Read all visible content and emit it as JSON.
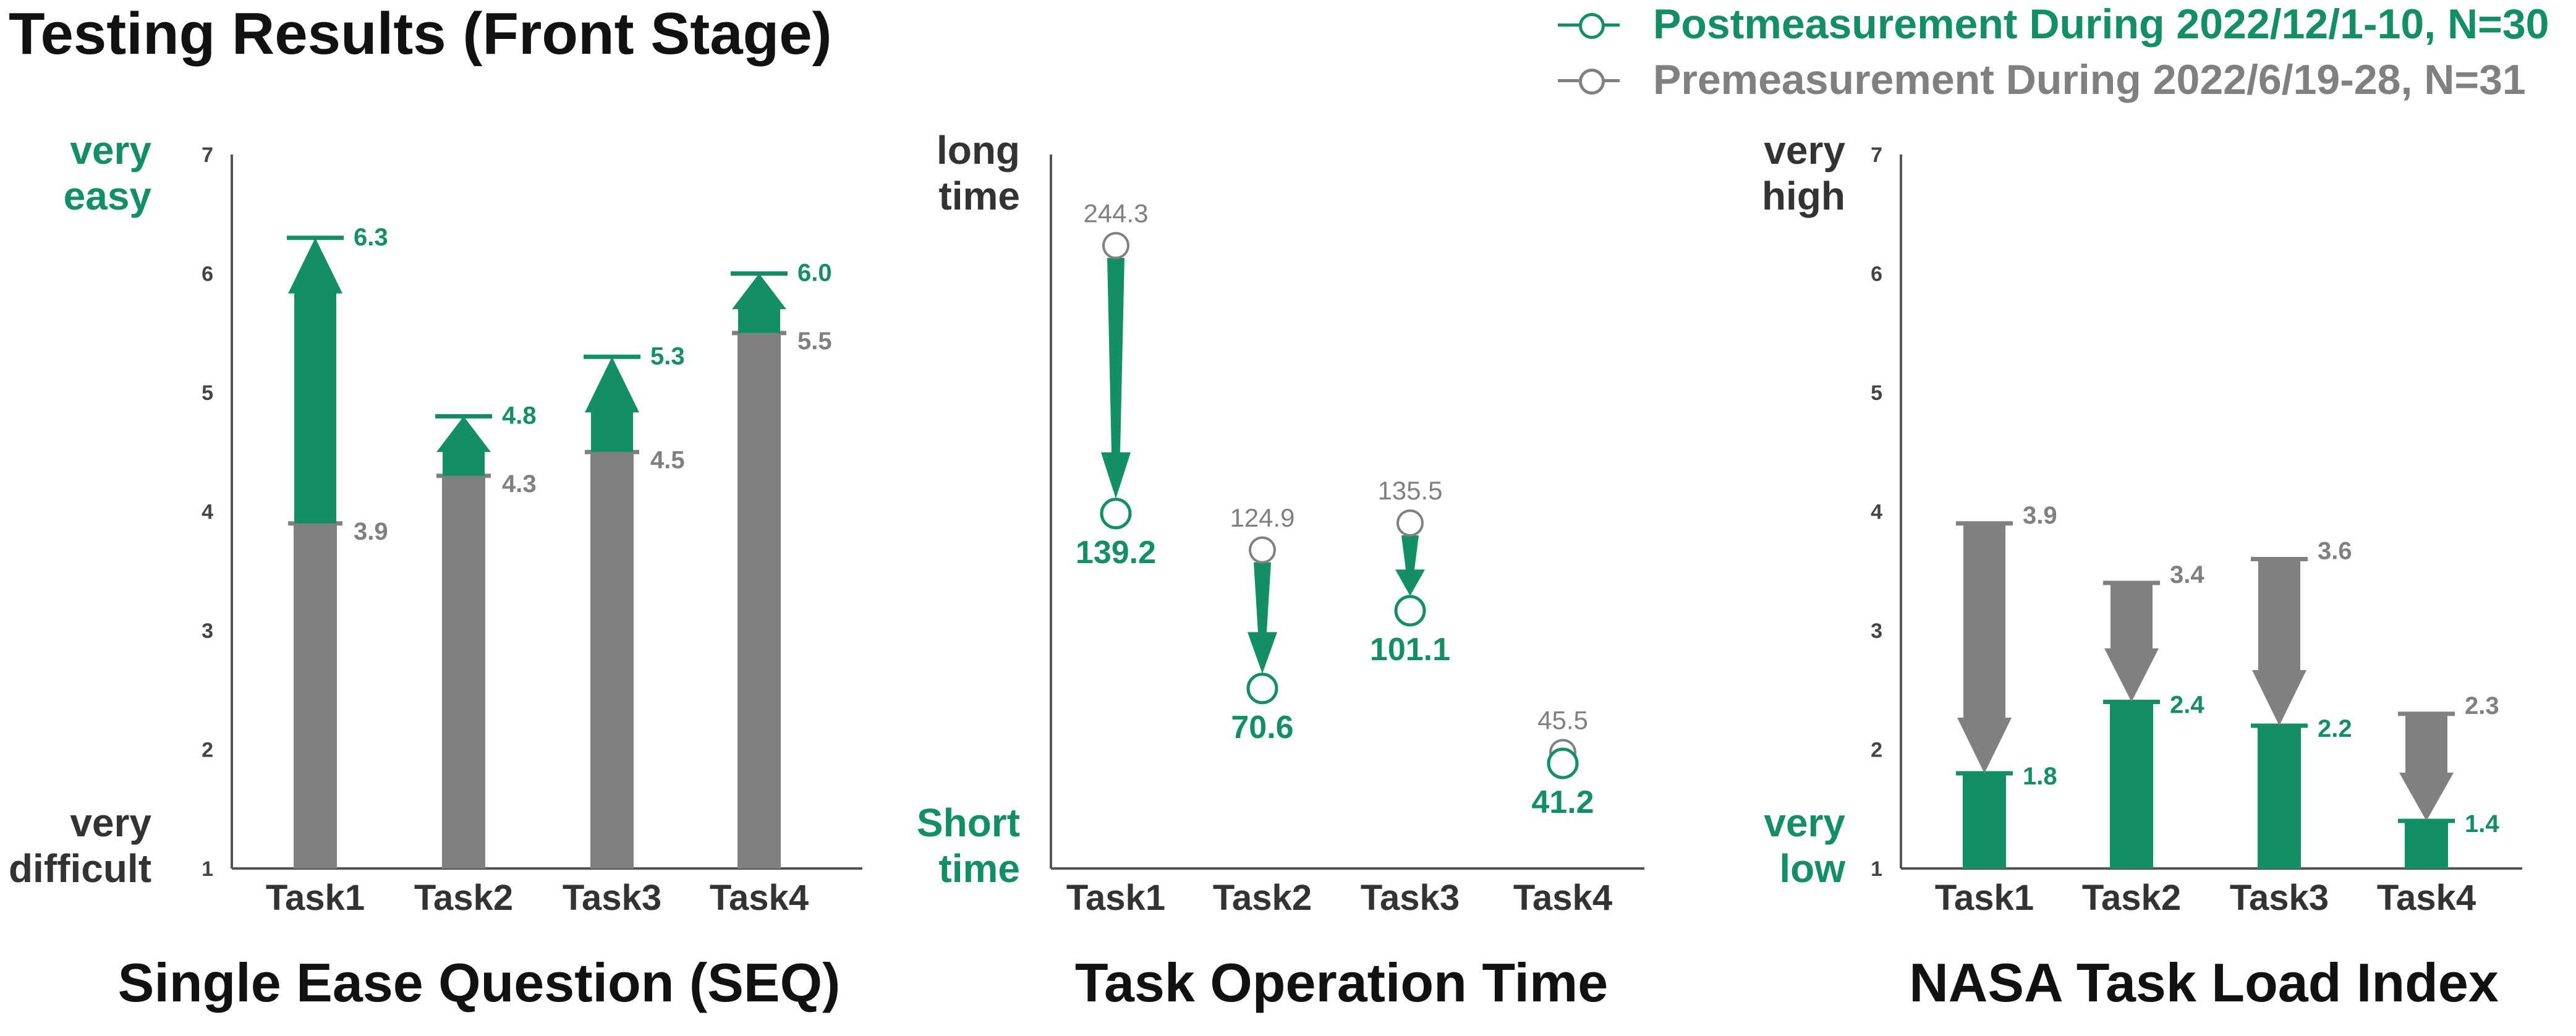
{
  "page_title": "Testing Results (Front Stage)",
  "colors": {
    "post": "#138f63",
    "pre": "#808080",
    "axis": "#555555",
    "text": "#333333"
  },
  "legend": {
    "post": {
      "label": "Postmeasurement During 2022/12/1-10, N=30",
      "color": "#138f63",
      "marker": "open-circle-icon"
    },
    "pre": {
      "label": "Premeasurement During 2022/6/19-28, N=31",
      "color": "#808080",
      "marker": "open-circle-icon"
    }
  },
  "chart_data": [
    {
      "type": "bar",
      "title": "Single Ease Question (SEQ)",
      "categories": [
        "Task1",
        "Task2",
        "Task3",
        "Task4"
      ],
      "ylim": [
        1,
        7
      ],
      "yticks": [
        "1",
        "2",
        "3",
        "4",
        "5",
        "6",
        "7"
      ],
      "top_label": [
        "very",
        "easy"
      ],
      "bottom_label": [
        "very",
        "difficult"
      ],
      "series": [
        {
          "name": "Premeasurement During 2022/6/19-28, N=31",
          "values": [
            3.9,
            4.3,
            4.5,
            5.5
          ],
          "labels": [
            "3.9",
            "4.3",
            "4.5",
            "5.5"
          ]
        },
        {
          "name": "Postmeasurement During 2022/12/1-10, N=30",
          "values": [
            6.3,
            4.8,
            5.3,
            6.0
          ],
          "labels": [
            "6.3",
            "4.8",
            "5.3",
            "6.0"
          ]
        }
      ]
    },
    {
      "type": "scatter",
      "title": "Task Operation Time",
      "categories": [
        "Task1",
        "Task2",
        "Task3",
        "Task4"
      ],
      "ylim": [
        0,
        280
      ],
      "top_label": [
        "long",
        "time"
      ],
      "bottom_label": [
        "Short",
        "time"
      ],
      "series": [
        {
          "name": "Premeasurement During 2022/6/19-28, N=31",
          "values": [
            244.3,
            124.9,
            135.5,
            45.5
          ],
          "labels": [
            "244.3",
            "124.9",
            "135.5",
            "45.5"
          ]
        },
        {
          "name": "Postmeasurement During 2022/12/1-10, N=30",
          "values": [
            139.2,
            70.6,
            101.1,
            41.2
          ],
          "labels": [
            "139.2",
            "70.6",
            "101.1",
            "41.2"
          ]
        }
      ]
    },
    {
      "type": "bar",
      "title": "NASA Task Load Index",
      "categories": [
        "Task1",
        "Task2",
        "Task3",
        "Task4"
      ],
      "ylim": [
        1,
        7
      ],
      "yticks": [
        "1",
        "2",
        "3",
        "4",
        "5",
        "6",
        "7"
      ],
      "top_label": [
        "very",
        "high"
      ],
      "bottom_label": [
        "very",
        "low"
      ],
      "series": [
        {
          "name": "Premeasurement During 2022/6/19-28, N=31",
          "values": [
            3.9,
            3.4,
            3.6,
            2.3
          ],
          "labels": [
            "3.9",
            "3.4",
            "3.6",
            "2.3"
          ]
        },
        {
          "name": "Postmeasurement During 2022/12/1-10, N=30",
          "values": [
            1.8,
            2.4,
            2.2,
            1.4
          ],
          "labels": [
            "1.8",
            "2.4",
            "2.2",
            "1.4"
          ]
        }
      ]
    }
  ]
}
